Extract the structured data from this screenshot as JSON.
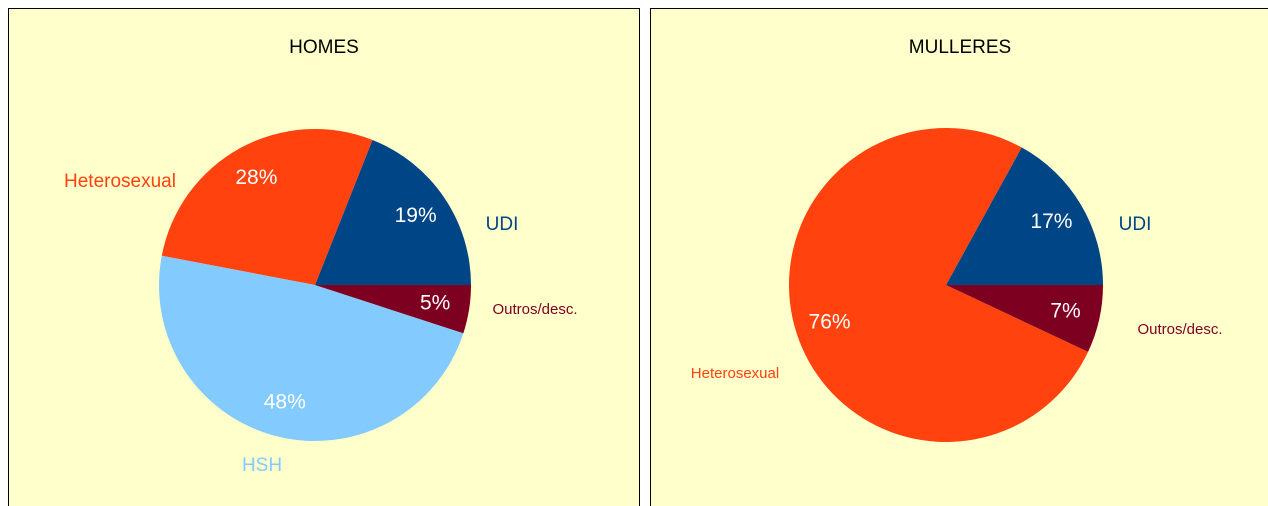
{
  "chart_data": [
    {
      "type": "pie",
      "title": "HOMES",
      "categories": [
        "UDI",
        "Heterosexual",
        "HSH",
        "Outros/desc."
      ],
      "values": [
        19,
        28,
        48,
        5
      ],
      "value_labels": [
        "19%",
        "28%",
        "48%",
        "5%"
      ],
      "colors": [
        "#004586",
        "#ff420e",
        "#83caff",
        "#7e0021"
      ]
    },
    {
      "type": "pie",
      "title": "MULLERES",
      "categories": [
        "UDI",
        "Heterosexual",
        "Outros/desc."
      ],
      "values": [
        17,
        76,
        7
      ],
      "value_labels": [
        "17%",
        "76%",
        "7%"
      ],
      "colors": [
        "#004586",
        "#ff420e",
        "#7e0021"
      ]
    }
  ]
}
